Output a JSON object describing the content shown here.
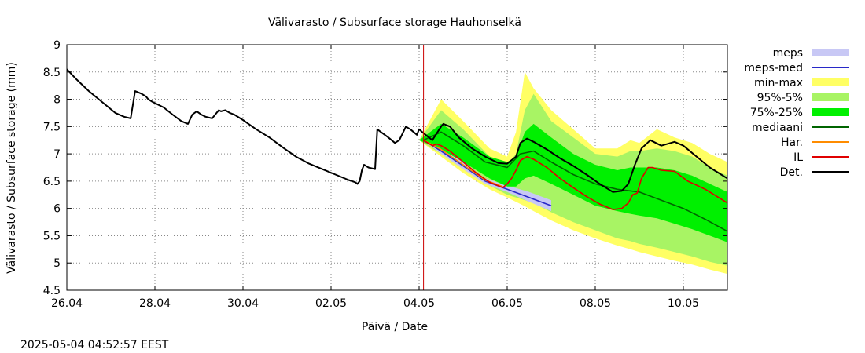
{
  "chart_data": {
    "type": "area",
    "title": "Välivarasto / Subsurface storage  Hauhonselkä",
    "xlabel": "Päivä / Date",
    "ylabel": "Välivarasto / Subsurface storage (mm)",
    "timestamp": "2025-05-04 04:52:57 EEST",
    "x_unit": "days from 26.04 00:00",
    "xlim": [
      0,
      15
    ],
    "ylim": [
      4.5,
      9
    ],
    "x_ticks": [
      {
        "x": 0,
        "label": "26.04"
      },
      {
        "x": 2,
        "label": "28.04"
      },
      {
        "x": 4,
        "label": "30.04"
      },
      {
        "x": 6,
        "label": "02.05"
      },
      {
        "x": 8,
        "label": "04.05"
      },
      {
        "x": 10,
        "label": "06.05"
      },
      {
        "x": 12,
        "label": "08.05"
      },
      {
        "x": 14,
        "label": "10.05"
      }
    ],
    "y_ticks": [
      4.5,
      5,
      5.5,
      6,
      6.5,
      7,
      7.5,
      8,
      8.5,
      9
    ],
    "y_tick_labels": [
      "4.5",
      "5",
      "5.5",
      "6",
      "6.5",
      "7",
      "7.5",
      "8",
      "8.5",
      "9"
    ],
    "grid": true,
    "forecast_start_x": 8.1,
    "legend": [
      {
        "label": "meps",
        "color": "#c8c8f5",
        "kind": "box"
      },
      {
        "label": "meps-med",
        "color": "#2828c8",
        "kind": "line"
      },
      {
        "label": "min-max",
        "color": "#ffff64",
        "kind": "box"
      },
      {
        "label": "95%-5%",
        "color": "#a8f464",
        "kind": "box"
      },
      {
        "label": "75%-25%",
        "color": "#00f000",
        "kind": "box"
      },
      {
        "label": "mediaani",
        "color": "#006400",
        "kind": "line"
      },
      {
        "label": "Har.",
        "color": "#ff8c00",
        "kind": "line"
      },
      {
        "label": "IL",
        "color": "#e00000",
        "kind": "line"
      },
      {
        "label": "Det.",
        "color": "#000000",
        "kind": "line"
      }
    ],
    "bands": {
      "x": [
        8.0,
        8.5,
        9.0,
        9.6,
        10.0,
        10.2,
        10.4,
        10.6,
        11.0,
        11.5,
        12.0,
        12.5,
        12.8,
        13.0,
        13.4,
        13.8,
        14.2,
        14.6,
        15.0
      ],
      "minmax_hi": [
        7.25,
        8.0,
        7.6,
        7.1,
        6.95,
        7.4,
        8.5,
        8.2,
        7.8,
        7.45,
        7.1,
        7.1,
        7.25,
        7.2,
        7.45,
        7.3,
        7.2,
        7.0,
        6.85
      ],
      "minmax_lo": [
        7.25,
        6.95,
        6.65,
        6.35,
        6.2,
        6.12,
        6.04,
        5.95,
        5.78,
        5.6,
        5.45,
        5.32,
        5.25,
        5.2,
        5.12,
        5.04,
        4.97,
        4.88,
        4.8
      ],
      "p95_hi": [
        7.25,
        7.8,
        7.45,
        6.95,
        6.8,
        7.0,
        7.8,
        8.1,
        7.6,
        7.3,
        7.0,
        6.95,
        7.05,
        7.05,
        7.1,
        7.05,
        6.95,
        6.75,
        6.6
      ],
      "p5_lo": [
        7.25,
        7.0,
        6.72,
        6.42,
        6.25,
        6.2,
        6.15,
        6.1,
        5.93,
        5.75,
        5.6,
        5.45,
        5.4,
        5.35,
        5.28,
        5.2,
        5.12,
        5.02,
        4.95
      ],
      "p75_hi": [
        7.25,
        7.55,
        7.3,
        6.95,
        6.85,
        6.95,
        7.4,
        7.55,
        7.3,
        7.0,
        6.8,
        6.7,
        6.75,
        6.75,
        6.75,
        6.7,
        6.6,
        6.45,
        6.3
      ],
      "p25_lo": [
        7.25,
        7.08,
        6.85,
        6.55,
        6.4,
        6.4,
        6.55,
        6.6,
        6.45,
        6.25,
        6.05,
        5.95,
        5.9,
        5.87,
        5.82,
        5.72,
        5.62,
        5.5,
        5.38
      ]
    },
    "series": [
      {
        "name": "Det.",
        "color": "#000000",
        "x": [
          0,
          0.2,
          0.5,
          0.8,
          1.1,
          1.3,
          1.45,
          1.55,
          1.7,
          1.8,
          1.85,
          1.95,
          2.2,
          2.4,
          2.6,
          2.75,
          2.85,
          2.95,
          3.05,
          3.15,
          3.3,
          3.45,
          3.5,
          3.6,
          3.7,
          3.8,
          4.0,
          4.3,
          4.6,
          4.9,
          5.2,
          5.5,
          5.8,
          6.1,
          6.4,
          6.55,
          6.6,
          6.65,
          6.7,
          6.75,
          6.85,
          7.0,
          7.05,
          7.1,
          7.3,
          7.45,
          7.55,
          7.7,
          7.8,
          7.95,
          8.0,
          8.1,
          8.3,
          8.5,
          8.55,
          8.7,
          8.9,
          9.2,
          9.5,
          9.8,
          10.0,
          10.2,
          10.3,
          10.45,
          10.6,
          10.9,
          11.2,
          11.5,
          11.8,
          12.1,
          12.4,
          12.6,
          12.75,
          12.9,
          13.05,
          13.25,
          13.5,
          13.8,
          14.0,
          14.3,
          14.6,
          15.0
        ],
        "y": [
          8.55,
          8.38,
          8.15,
          7.95,
          7.75,
          7.68,
          7.65,
          8.15,
          8.1,
          8.05,
          8.0,
          7.95,
          7.85,
          7.72,
          7.6,
          7.55,
          7.72,
          7.78,
          7.72,
          7.68,
          7.65,
          7.8,
          7.78,
          7.8,
          7.75,
          7.72,
          7.62,
          7.45,
          7.3,
          7.12,
          6.95,
          6.82,
          6.72,
          6.62,
          6.52,
          6.48,
          6.45,
          6.5,
          6.7,
          6.8,
          6.75,
          6.72,
          7.45,
          7.42,
          7.3,
          7.2,
          7.25,
          7.5,
          7.45,
          7.35,
          7.45,
          7.38,
          7.25,
          7.5,
          7.55,
          7.5,
          7.3,
          7.1,
          6.95,
          6.83,
          6.82,
          6.95,
          7.2,
          7.28,
          7.22,
          7.08,
          6.92,
          6.78,
          6.62,
          6.45,
          6.3,
          6.32,
          6.45,
          6.8,
          7.1,
          7.25,
          7.15,
          7.22,
          7.15,
          6.95,
          6.75,
          6.55
        ]
      },
      {
        "name": "IL",
        "color": "#e00000",
        "x": [
          8.1,
          8.3,
          8.4,
          8.5,
          8.7,
          9.0,
          9.3,
          9.6,
          9.9,
          10.0,
          10.1,
          10.2,
          10.3,
          10.45,
          10.6,
          10.9,
          11.2,
          11.5,
          11.8,
          12.1,
          12.4,
          12.6,
          12.75,
          12.85,
          12.95,
          13.05,
          13.2,
          13.3,
          13.5,
          13.8,
          14.1,
          14.5,
          15.0
        ],
        "y": [
          7.25,
          7.15,
          7.18,
          7.15,
          7.05,
          6.85,
          6.65,
          6.48,
          6.38,
          6.45,
          6.55,
          6.7,
          6.88,
          6.95,
          6.9,
          6.75,
          6.55,
          6.38,
          6.22,
          6.08,
          5.98,
          6.0,
          6.1,
          6.25,
          6.28,
          6.55,
          6.75,
          6.75,
          6.7,
          6.68,
          6.5,
          6.35,
          6.1
        ]
      },
      {
        "name": "mediaani",
        "color": "#006400",
        "x": [
          8.1,
          8.5,
          9.0,
          9.5,
          10.0,
          10.3,
          10.6,
          11.0,
          11.5,
          12.0,
          12.5,
          13.0,
          13.5,
          14.0,
          14.5,
          15.0
        ],
        "y": [
          7.25,
          7.4,
          7.15,
          6.85,
          6.75,
          7.0,
          7.05,
          6.85,
          6.62,
          6.45,
          6.35,
          6.3,
          6.15,
          6.0,
          5.8,
          5.58
        ]
      },
      {
        "name": "meps-med",
        "color": "#2828c8",
        "x": [
          8.1,
          8.5,
          9.0,
          9.5,
          10.0,
          10.5,
          11.0
        ],
        "y": [
          7.25,
          7.05,
          6.78,
          6.5,
          6.35,
          6.2,
          6.05
        ]
      },
      {
        "name": "Har.",
        "color": "#ff8c00",
        "x": [
          8.1,
          8.5,
          9.0,
          9.5,
          9.9
        ],
        "y": [
          7.25,
          7.08,
          6.8,
          6.52,
          6.4
        ]
      }
    ],
    "meps_band": {
      "x": [
        8.1,
        8.5,
        9.0,
        9.5,
        10.0,
        10.5,
        11.0
      ],
      "hi": [
        7.25,
        7.1,
        6.85,
        6.55,
        6.42,
        6.3,
        6.15
      ],
      "lo": [
        7.25,
        7.0,
        6.72,
        6.45,
        6.3,
        6.12,
        5.95
      ]
    }
  }
}
